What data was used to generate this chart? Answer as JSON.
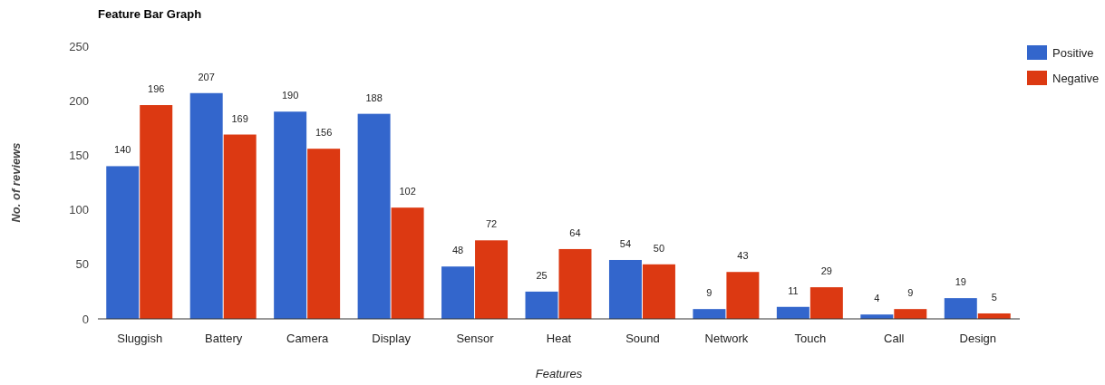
{
  "chart_data": {
    "type": "bar",
    "title": "Feature Bar Graph",
    "xlabel": "Features",
    "ylabel": "No. of reviews",
    "categories": [
      "Sluggish",
      "Battery",
      "Camera",
      "Display",
      "Sensor",
      "Heat",
      "Sound",
      "Network",
      "Touch",
      "Call",
      "Design"
    ],
    "series": [
      {
        "name": "Positive",
        "color": "#3366cc",
        "values": [
          140,
          207,
          190,
          188,
          48,
          25,
          54,
          9,
          11,
          4,
          19
        ]
      },
      {
        "name": "Negative",
        "color": "#dc3912",
        "values": [
          196,
          169,
          156,
          102,
          72,
          64,
          50,
          43,
          29,
          9,
          5
        ]
      }
    ],
    "ylim": [
      0,
      250
    ],
    "yticks": [
      0,
      50,
      100,
      150,
      200,
      250
    ],
    "grid": false,
    "legend": "top right",
    "data_labels": true
  }
}
